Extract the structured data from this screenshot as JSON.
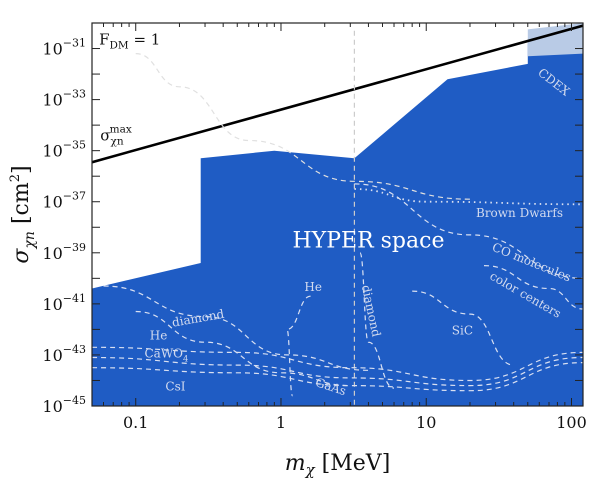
{
  "chart_data": {
    "type": "area",
    "title": "",
    "xlabel": "m_χ [MeV]",
    "ylabel": "σ_χn [cm²]",
    "x_scale": "log",
    "y_scale": "log",
    "xlim": [
      0.05,
      120
    ],
    "ylim": [
      1e-45,
      1e-30
    ],
    "x_ticks": [
      {
        "value": 0.1,
        "label": "0.1"
      },
      {
        "value": 1,
        "label": "1"
      },
      {
        "value": 10,
        "label": "10"
      },
      {
        "value": 100,
        "label": "100"
      }
    ],
    "y_ticks": [
      {
        "exp": -31,
        "label": "10^{-31}"
      },
      {
        "exp": -33,
        "label": "10^{-33}"
      },
      {
        "exp": -35,
        "label": "10^{-35}"
      },
      {
        "exp": -37,
        "label": "10^{-37}"
      },
      {
        "exp": -39,
        "label": "10^{-39}"
      },
      {
        "exp": -41,
        "label": "10^{-41}"
      },
      {
        "exp": -43,
        "label": "10^{-43}"
      },
      {
        "exp": -45,
        "label": "10^{-45}"
      }
    ],
    "regions": [
      {
        "name": "HYPER space",
        "color": "#1f5cc4",
        "boundary": [
          [
            0.05,
            -40.4
          ],
          [
            0.28,
            -39.4
          ],
          [
            0.28,
            -35.3
          ],
          [
            0.9,
            -35.0
          ],
          [
            3.2,
            -35.3
          ],
          [
            14,
            -32.2
          ],
          [
            50,
            -31.6
          ],
          [
            50,
            -30.8
          ],
          [
            120,
            -30.8
          ],
          [
            120,
            -45
          ],
          [
            0.05,
            -45
          ]
        ]
      },
      {
        "name": "CDEX",
        "color": "#b9cbe6",
        "boundary": [
          [
            50,
            -30.25
          ],
          [
            120,
            -30.0
          ],
          [
            120,
            -31.2
          ],
          [
            50,
            -31.3
          ]
        ]
      }
    ],
    "lines": [
      {
        "name": "σ_χn^max",
        "style": "solid",
        "color": "#000000",
        "points": [
          [
            0.05,
            -35.45
          ],
          [
            120,
            -30.1
          ]
        ]
      },
      {
        "name": "F_DM = 1",
        "style": "dashed",
        "color": "#e0e0e0",
        "points": [
          [
            0.1,
            -31.2
          ],
          [
            0.2,
            -32.5
          ],
          [
            0.6,
            -34.6
          ],
          [
            3.2,
            -36.2
          ],
          [
            20,
            -36.9
          ]
        ]
      },
      {
        "name": "Brown Dwarfs",
        "style": "dotted",
        "color": "#d9e0f2",
        "points": [
          [
            3.2,
            -36.5
          ],
          [
            10,
            -37.0
          ],
          [
            120,
            -37.1
          ]
        ]
      },
      {
        "name": "vertical-divider",
        "style": "dashed",
        "color": "#cccccc",
        "points": [
          [
            3.2,
            -30.3
          ],
          [
            3.2,
            -45
          ]
        ]
      },
      {
        "name": "CO molecules",
        "style": "dashed",
        "color": "#d9e0f2",
        "points": [
          [
            3.2,
            -36.3
          ],
          [
            20,
            -38.3
          ],
          [
            120,
            -40.0
          ]
        ]
      },
      {
        "name": "color centers",
        "style": "dashed",
        "color": "#d9e0f2",
        "points": [
          [
            25,
            -39.5
          ],
          [
            70,
            -40.4
          ],
          [
            120,
            -41.2
          ]
        ]
      },
      {
        "name": "SiC",
        "style": "dashed",
        "color": "#d9e0f2",
        "points": [
          [
            8,
            -40.5
          ],
          [
            20,
            -41.4
          ],
          [
            40,
            -43.4
          ]
        ]
      },
      {
        "name": "diamond-right",
        "style": "dashed",
        "color": "#d9e0f2",
        "points": [
          [
            3.5,
            -39.0
          ],
          [
            4,
            -42.5
          ],
          [
            6,
            -44.3
          ]
        ]
      },
      {
        "name": "He-right",
        "style": "dashed",
        "color": "#d9e0f2",
        "points": [
          [
            1.6,
            -40.7
          ],
          [
            1.1,
            -42.0
          ],
          [
            1.2,
            -44.6
          ]
        ]
      },
      {
        "name": "diamond-left",
        "style": "dashed",
        "color": "#d9e0f2",
        "points": [
          [
            0.06,
            -40.3
          ],
          [
            0.3,
            -41.5
          ],
          [
            1.1,
            -43.0
          ],
          [
            4,
            -43.6
          ]
        ]
      },
      {
        "name": "He-left",
        "style": "dashed",
        "color": "#d9e0f2",
        "points": [
          [
            0.1,
            -41.3
          ],
          [
            0.3,
            -42.5
          ],
          [
            1,
            -43.7
          ],
          [
            3,
            -44.2
          ]
        ]
      },
      {
        "name": "CaWO4",
        "style": "dashed",
        "color": "#d9e0f2",
        "points": [
          [
            0.05,
            -42.7
          ],
          [
            0.5,
            -42.9
          ],
          [
            3,
            -43.5
          ],
          [
            20,
            -44.0
          ],
          [
            120,
            -42.9
          ]
        ]
      },
      {
        "name": "CsI",
        "style": "dashed",
        "color": "#d9e0f2",
        "points": [
          [
            0.05,
            -43.5
          ],
          [
            0.5,
            -43.7
          ],
          [
            3,
            -44.2
          ],
          [
            20,
            -44.4
          ],
          [
            120,
            -43.3
          ]
        ]
      },
      {
        "name": "GaAs",
        "style": "dashed",
        "color": "#d9e0f2",
        "points": [
          [
            0.05,
            -43.1
          ],
          [
            0.5,
            -43.4
          ],
          [
            3,
            -43.9
          ],
          [
            20,
            -44.2
          ],
          [
            120,
            -43.1
          ]
        ]
      }
    ],
    "annotations": [
      {
        "text": "HYPER space",
        "x": 1.2,
        "y": -38.8,
        "kind": "region"
      },
      {
        "text": "F",
        "sub": "DM",
        "suffix": " = 1",
        "x": 0.056,
        "y": -30.85,
        "kind": "dark"
      },
      {
        "text": "σ",
        "sub": "χn",
        "sup": "max",
        "x": 0.057,
        "y": -34.6,
        "kind": "dark"
      },
      {
        "text": "CDEX",
        "x": 58,
        "y": -32.0,
        "kind": "light",
        "rotate": 38
      },
      {
        "text": "Brown Dwarfs",
        "x": 22,
        "y": -37.6,
        "kind": "light"
      },
      {
        "text": "CO molecules",
        "x": 28,
        "y": -38.9,
        "kind": "light",
        "rotate": 22
      },
      {
        "text": "color centers",
        "x": 27,
        "y": -40.0,
        "kind": "light",
        "rotate": 30
      },
      {
        "text": "SiC",
        "x": 15,
        "y": -42.2,
        "kind": "light"
      },
      {
        "text": "diamond",
        "x": 3.6,
        "y": -40.3,
        "kind": "light",
        "rotate": 78
      },
      {
        "text": "He",
        "x": 1.45,
        "y": -40.5,
        "kind": "light"
      },
      {
        "text": "diamond",
        "x": 0.18,
        "y": -41.9,
        "kind": "light",
        "rotate": -10
      },
      {
        "text": "He",
        "x": 0.125,
        "y": -42.4,
        "kind": "light"
      },
      {
        "text": "CaWO",
        "sub": "4",
        "x": 0.115,
        "y": -43.1,
        "kind": "light"
      },
      {
        "text": "CsI",
        "x": 0.16,
        "y": -44.4,
        "kind": "light"
      },
      {
        "text": "GaAs",
        "x": 1.7,
        "y": -44.2,
        "kind": "light",
        "rotate": 18
      }
    ]
  }
}
